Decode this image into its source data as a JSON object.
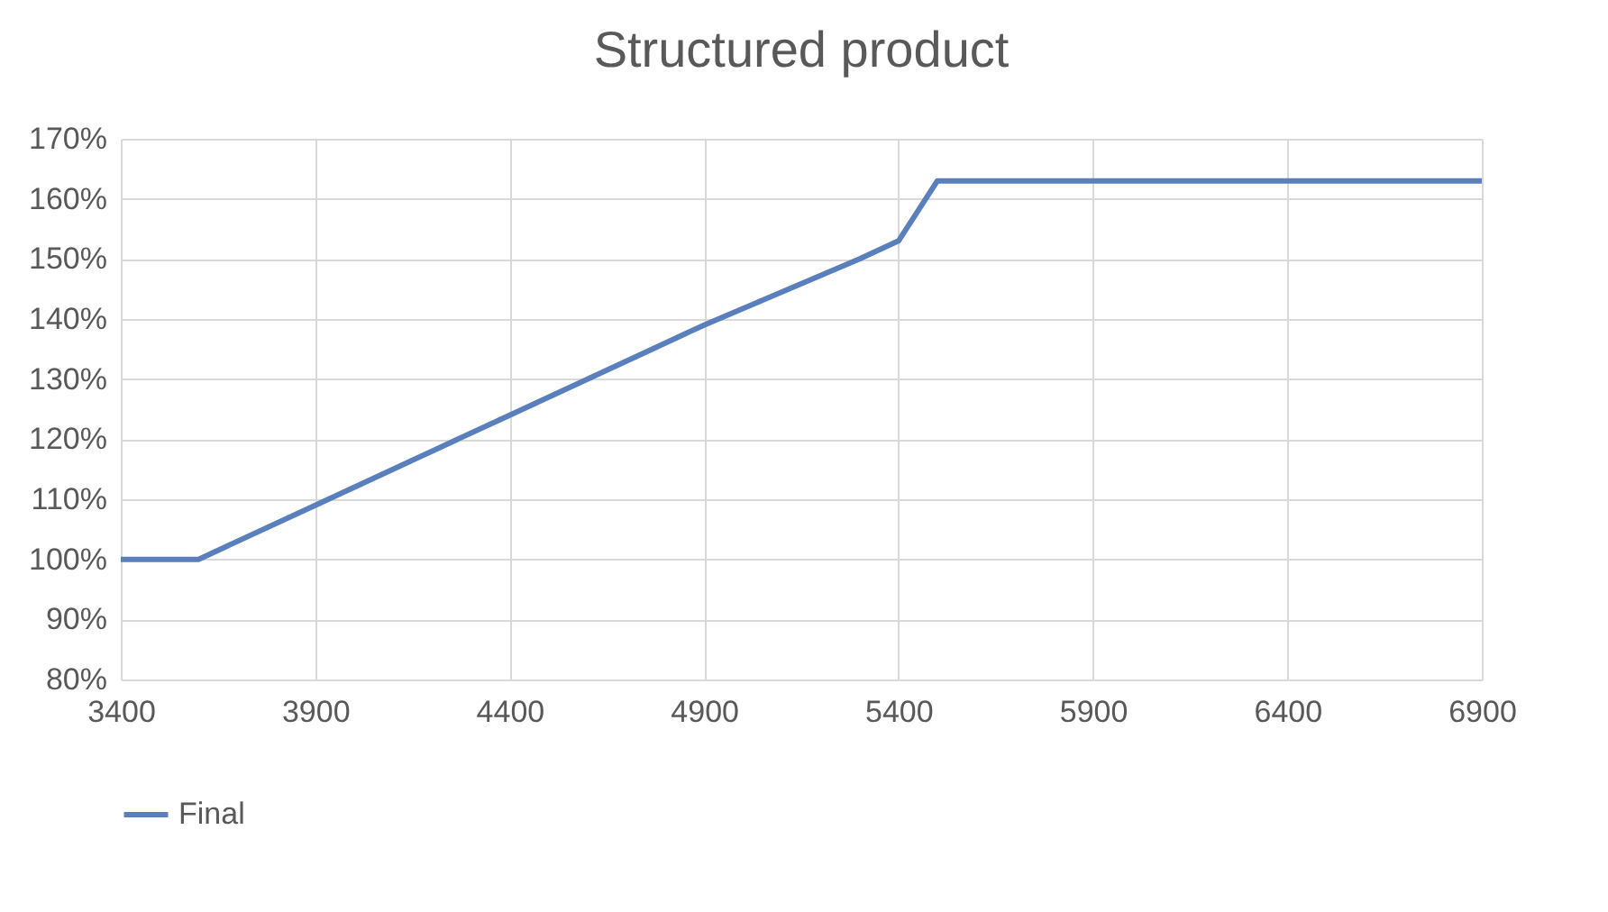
{
  "chart_data": {
    "type": "line",
    "title": "Structured product",
    "x": [
      3400,
      3600,
      3900,
      4100,
      4200,
      4400,
      4700,
      4800,
      4900,
      5300,
      5400,
      5500,
      6900
    ],
    "series": [
      {
        "name": "Final",
        "color": "#5a7fbd",
        "values": [
          100,
          100,
          109,
          115,
          118,
          124,
          133,
          136,
          139,
          150,
          153,
          163,
          163
        ]
      }
    ],
    "xlim": [
      3400,
      6900
    ],
    "xticks": [
      3400,
      3900,
      4400,
      4900,
      5400,
      5900,
      6400,
      6900
    ],
    "ylim": [
      80,
      170
    ],
    "yticks": [
      {
        "value": 80,
        "label": "80%"
      },
      {
        "value": 90,
        "label": "90%"
      },
      {
        "value": 100,
        "label": "100%"
      },
      {
        "value": 110,
        "label": "110%"
      },
      {
        "value": 120,
        "label": "120%"
      },
      {
        "value": 130,
        "label": "130%"
      },
      {
        "value": 140,
        "label": "140%"
      },
      {
        "value": 150,
        "label": "150%"
      },
      {
        "value": 160,
        "label": "160%"
      },
      {
        "value": 170,
        "label": "170%"
      }
    ],
    "grid": true,
    "legend": "bottom",
    "marker": "none",
    "line_style": "solid"
  }
}
